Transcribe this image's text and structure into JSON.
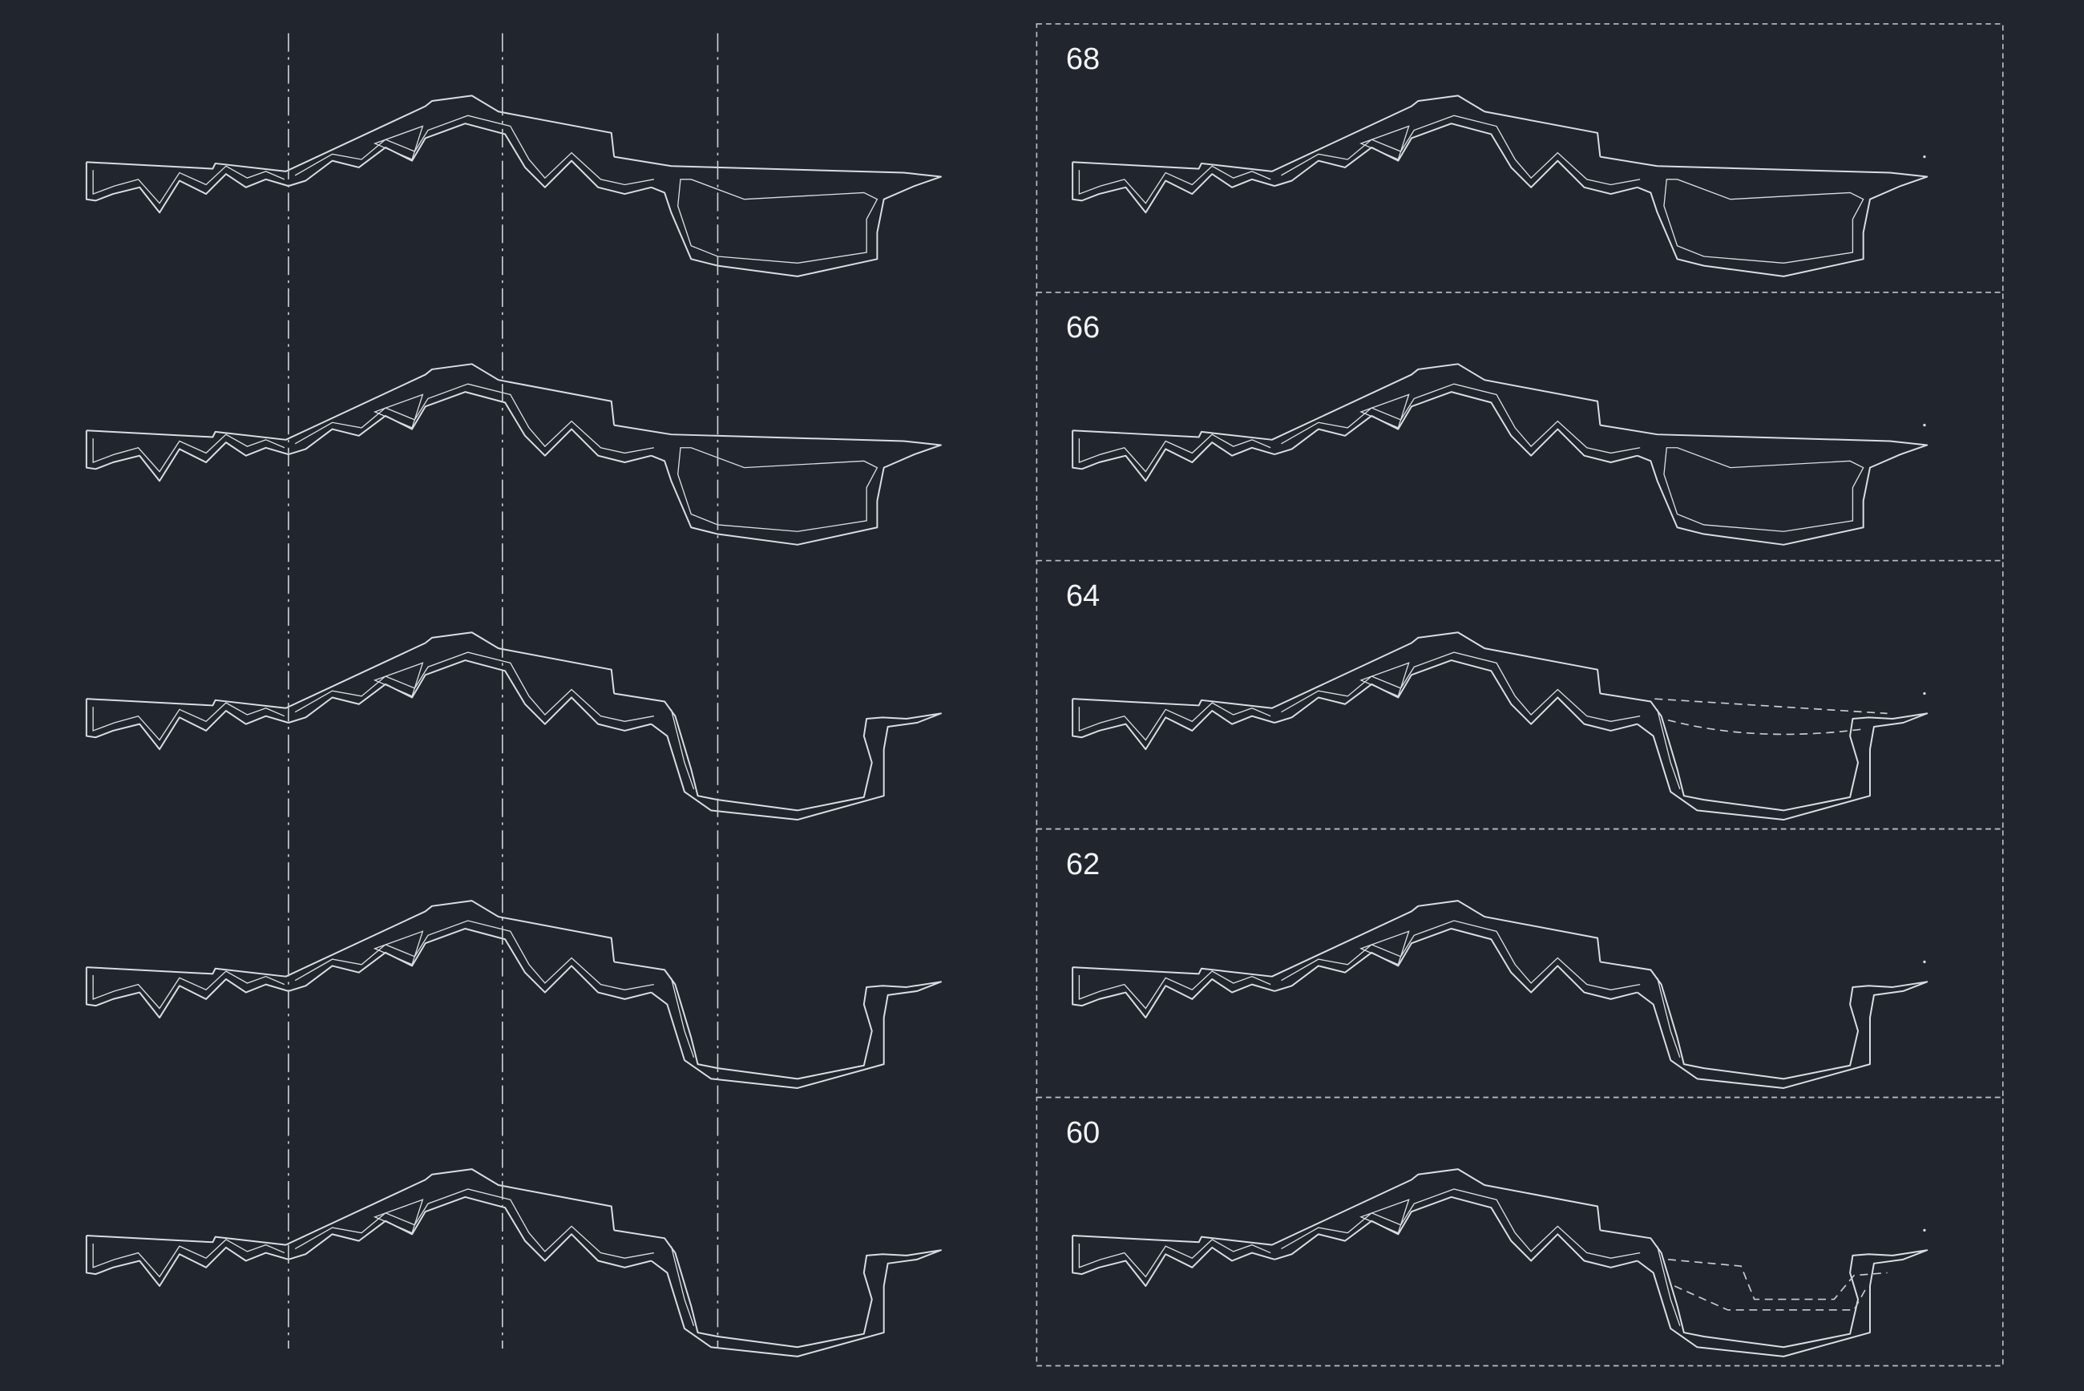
{
  "panels": [
    {
      "label": "68"
    },
    {
      "label": "66"
    },
    {
      "label": "64"
    },
    {
      "label": "62"
    },
    {
      "label": "60"
    }
  ]
}
